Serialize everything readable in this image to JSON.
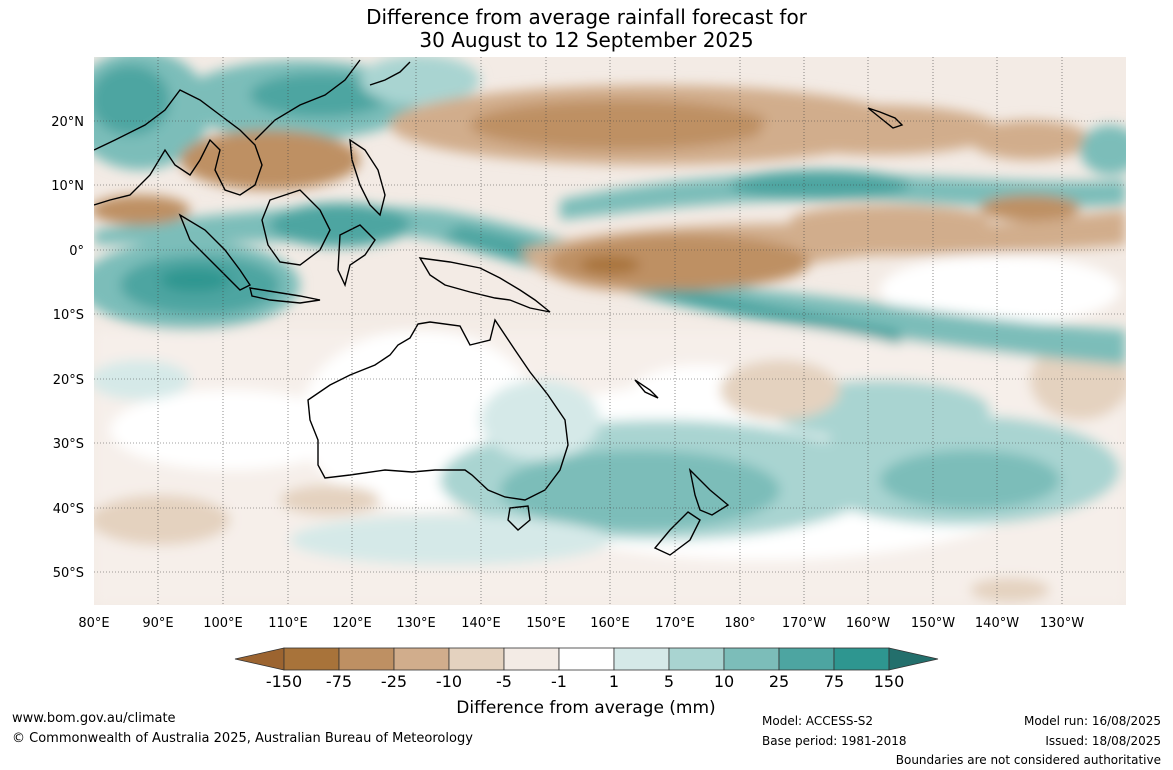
{
  "title": {
    "line1": "Difference from average rainfall forecast for",
    "line2": "30 August to 12 September 2025"
  },
  "map": {
    "lon_labels": [
      "80°E",
      "90°E",
      "100°E",
      "110°E",
      "120°E",
      "130°E",
      "140°E",
      "150°E",
      "160°E",
      "170°E",
      "180°",
      "170°W",
      "160°W",
      "150°W",
      "140°W",
      "130°W"
    ],
    "lat_labels": [
      "20°N",
      "10°N",
      "0°",
      "10°S",
      "20°S",
      "30°S",
      "40°S",
      "50°S"
    ],
    "extent": {
      "lon_min": 80,
      "lon_max": 240,
      "lat_min": -55,
      "lat_max": 30
    }
  },
  "colorbar": {
    "labels": [
      "-150",
      "-75",
      "-25",
      "-10",
      "-5",
      "-1",
      "1",
      "5",
      "10",
      "25",
      "75",
      "150"
    ],
    "colors": [
      "#9c6430",
      "#a8733a",
      "#be9063",
      "#d1ad8c",
      "#e4d2bf",
      "#f3ebe5",
      "#ffffff",
      "#d5e9e8",
      "#a9d4d1",
      "#7cbdb9",
      "#4da5a1",
      "#2e9690",
      "#236f6c"
    ],
    "title": "Difference from average (mm)"
  },
  "footer": {
    "website": "www.bom.gov.au/climate",
    "copyright": "© Commonwealth of Australia 2025, Australian Bureau of Meteorology",
    "model": "Model: ACCESS-S2",
    "base_period": "Base period: 1981-2018",
    "model_run": "Model run: 16/08/2025",
    "issued": "Issued: 18/08/2025",
    "boundaries": "Boundaries are not considered authoritative"
  }
}
